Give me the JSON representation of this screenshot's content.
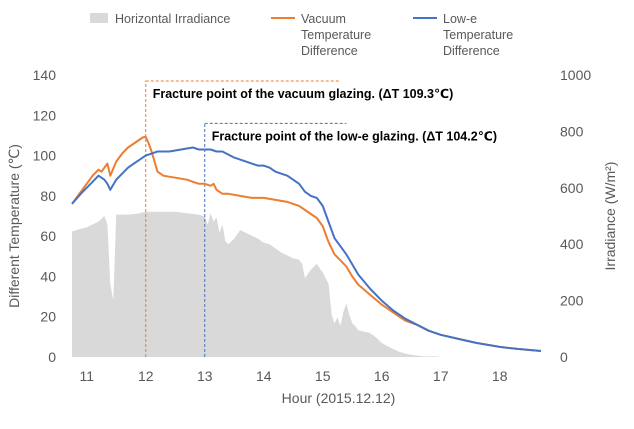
{
  "chart_data": {
    "type": "line",
    "xlabel": "Hour (2015.12.12)",
    "ylabel_left": "Different Temperature (℃)",
    "ylabel_right": "Irradiance (W/m²)",
    "x_ticks": [
      "11",
      "12",
      "13",
      "14",
      "15",
      "16",
      "17",
      "18"
    ],
    "xlim": [
      10.75,
      18.7
    ],
    "y_left_ticks": [
      "0",
      "20",
      "40",
      "60",
      "80",
      "100",
      "120",
      "140"
    ],
    "ylim_left": [
      0,
      140
    ],
    "y_right_ticks": [
      "0",
      "200",
      "400",
      "600",
      "800",
      "1000"
    ],
    "ylim_right": [
      0,
      1000
    ],
    "grid": false,
    "legend_position": "top",
    "colors": {
      "irradiance": "#d9d9d9",
      "vacuum": "#ed7d31",
      "lowe": "#4472c4",
      "axis_text": "#595959"
    },
    "legend": [
      {
        "key": "irradiance",
        "lines": [
          "Horizontal Irradiance"
        ]
      },
      {
        "key": "vacuum",
        "lines": [
          "Vacuum",
          "Temperature",
          "Difference"
        ]
      },
      {
        "key": "lowe",
        "lines": [
          "Low-e",
          "Temperature",
          "Difference"
        ]
      }
    ],
    "series": [
      {
        "key": "irradiance",
        "axis": "right",
        "x": [
          10.75,
          10.9,
          11.0,
          11.1,
          11.2,
          11.3,
          11.35,
          11.4,
          11.45,
          11.5,
          11.7,
          11.85,
          12.0,
          12.1,
          12.3,
          12.5,
          12.7,
          12.9,
          13.0,
          13.05,
          13.1,
          13.15,
          13.2,
          13.25,
          13.3,
          13.35,
          13.4,
          13.5,
          13.6,
          13.7,
          13.8,
          13.9,
          14.0,
          14.1,
          14.2,
          14.3,
          14.4,
          14.5,
          14.6,
          14.65,
          14.7,
          14.8,
          14.9,
          15.0,
          15.1,
          15.15,
          15.2,
          15.25,
          15.3,
          15.35,
          15.4,
          15.45,
          15.5,
          15.55,
          15.6,
          15.7,
          15.8,
          15.9,
          16.0,
          16.1,
          16.2,
          16.3,
          16.4,
          16.5,
          16.6,
          16.7,
          16.8,
          16.9,
          17.0,
          17.3,
          17.6,
          18.0,
          18.3,
          18.7
        ],
        "y": [
          445,
          455,
          460,
          470,
          480,
          500,
          470,
          260,
          200,
          505,
          505,
          508,
          515,
          515,
          515,
          515,
          510,
          505,
          498,
          470,
          510,
          480,
          495,
          440,
          470,
          410,
          400,
          420,
          450,
          440,
          430,
          420,
          405,
          400,
          385,
          370,
          360,
          350,
          345,
          330,
          280,
          310,
          330,
          300,
          260,
          150,
          120,
          140,
          110,
          160,
          190,
          150,
          120,
          110,
          95,
          90,
          85,
          70,
          50,
          38,
          28,
          18,
          12,
          8,
          5,
          3,
          2,
          2,
          0,
          0,
          0,
          0,
          0,
          0
        ]
      },
      {
        "key": "vacuum",
        "axis": "left",
        "x": [
          10.75,
          10.9,
          11.0,
          11.1,
          11.2,
          11.25,
          11.3,
          11.35,
          11.4,
          11.5,
          11.6,
          11.7,
          11.8,
          11.9,
          11.95,
          12.0,
          12.05,
          12.1,
          12.15,
          12.2,
          12.3,
          12.5,
          12.7,
          12.8,
          12.9,
          13.0,
          13.1,
          13.15,
          13.2,
          13.3,
          13.4,
          13.6,
          13.8,
          14.0,
          14.2,
          14.4,
          14.5,
          14.6,
          14.7,
          14.8,
          14.9,
          15.0,
          15.1,
          15.2,
          15.3,
          15.4,
          15.5,
          15.6,
          15.8,
          16.0,
          16.2,
          16.4,
          16.6,
          16.8,
          17.0,
          17.3,
          17.6,
          18.0,
          18.3,
          18.7
        ],
        "y": [
          76,
          82,
          86,
          90,
          93,
          92,
          94,
          96,
          90,
          97,
          101,
          104,
          106,
          108,
          109,
          109.3,
          106,
          102,
          97,
          92,
          90,
          89,
          88,
          87,
          86,
          86,
          85,
          86,
          83,
          81,
          81,
          80,
          79,
          79,
          78,
          77,
          76,
          75,
          73,
          71,
          69,
          65,
          57,
          51,
          48,
          45,
          40,
          36,
          31,
          26,
          22,
          18,
          16,
          13,
          11,
          9,
          7,
          5,
          4,
          3
        ]
      },
      {
        "key": "lowe",
        "axis": "left",
        "x": [
          10.75,
          10.9,
          11.0,
          11.1,
          11.2,
          11.25,
          11.3,
          11.35,
          11.4,
          11.5,
          11.6,
          11.7,
          11.8,
          11.9,
          12.0,
          12.1,
          12.2,
          12.4,
          12.6,
          12.8,
          12.9,
          13.0,
          13.1,
          13.2,
          13.3,
          13.5,
          13.7,
          13.9,
          14.0,
          14.1,
          14.2,
          14.4,
          14.5,
          14.6,
          14.7,
          14.8,
          14.9,
          15.0,
          15.1,
          15.2,
          15.3,
          15.4,
          15.5,
          15.6,
          15.8,
          16.0,
          16.2,
          16.4,
          16.6,
          16.8,
          17.0,
          17.3,
          17.6,
          18.0,
          18.3,
          18.7
        ],
        "y": [
          76,
          81,
          84,
          87,
          90,
          89,
          88,
          86,
          83,
          88,
          91,
          94,
          96,
          98,
          100,
          101,
          102,
          102,
          103,
          104,
          103,
          103,
          103,
          102,
          102,
          99,
          97,
          95,
          95,
          94,
          92,
          90,
          88,
          86,
          82,
          80,
          79,
          75,
          67,
          59,
          55,
          51,
          46,
          41,
          34,
          28,
          23,
          19,
          16,
          13,
          11,
          9,
          7,
          5,
          4,
          3
        ]
      }
    ],
    "annotations": [
      {
        "key": "vacuum",
        "text": "Fracture point of the vacuum glazing. (ΔT 109.3℃)",
        "x": 12.0,
        "y": 109.3,
        "box_top": 137,
        "box_right": 15.3
      },
      {
        "key": "lowe",
        "text": "Fracture point of the low-e glazing. (ΔT 104.2℃)",
        "x": 13.0,
        "y": 104.2,
        "box_top": 116,
        "box_right": 15.4
      }
    ]
  }
}
